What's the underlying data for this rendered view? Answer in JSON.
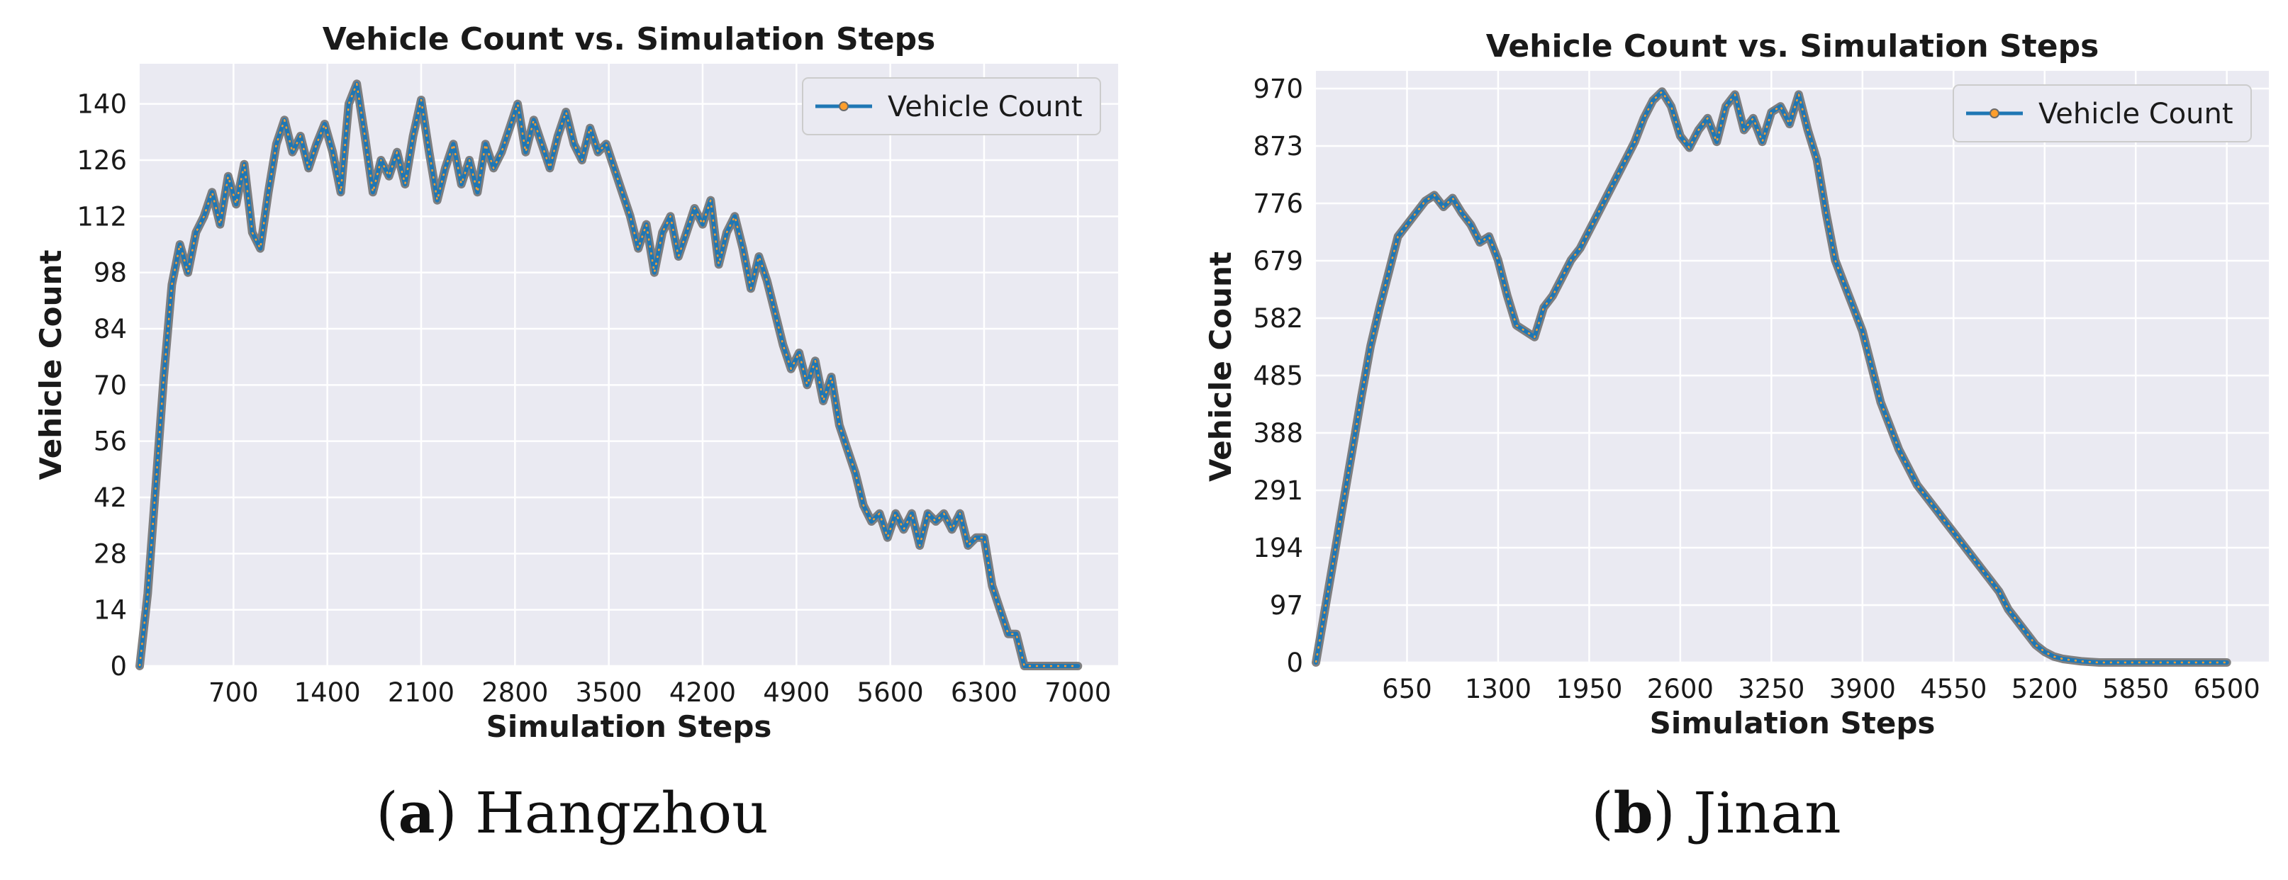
{
  "chart_data": [
    {
      "type": "line",
      "title": "Vehicle Count vs. Simulation Steps",
      "xlabel": "Simulation Steps",
      "ylabel": "Vehicle Count",
      "xlim": [
        0,
        7300
      ],
      "ylim": [
        0,
        150
      ],
      "xticks": [
        700,
        1400,
        2100,
        2800,
        3500,
        4200,
        4900,
        5600,
        6300,
        7000
      ],
      "yticks": [
        0,
        14,
        28,
        42,
        56,
        70,
        84,
        98,
        112,
        126,
        140
      ],
      "grid": true,
      "legend": "top-right",
      "series": [
        {
          "name": "Vehicle Count",
          "x": [
            0,
            60,
            120,
            180,
            240,
            300,
            360,
            420,
            480,
            540,
            600,
            660,
            720,
            780,
            840,
            900,
            960,
            1020,
            1080,
            1140,
            1200,
            1260,
            1320,
            1380,
            1440,
            1500,
            1560,
            1620,
            1680,
            1740,
            1800,
            1860,
            1920,
            1980,
            2040,
            2100,
            2160,
            2220,
            2280,
            2340,
            2400,
            2460,
            2520,
            2580,
            2640,
            2700,
            2760,
            2820,
            2880,
            2940,
            3000,
            3060,
            3120,
            3180,
            3240,
            3300,
            3360,
            3420,
            3480,
            3540,
            3600,
            3660,
            3720,
            3780,
            3840,
            3900,
            3960,
            4020,
            4080,
            4140,
            4200,
            4260,
            4320,
            4380,
            4440,
            4500,
            4560,
            4620,
            4680,
            4740,
            4800,
            4860,
            4920,
            4980,
            5040,
            5100,
            5160,
            5220,
            5280,
            5340,
            5400,
            5460,
            5520,
            5580,
            5640,
            5700,
            5760,
            5820,
            5880,
            5940,
            6000,
            6060,
            6120,
            6180,
            6240,
            6300,
            6360,
            6420,
            6480,
            6540,
            6600,
            6660,
            6720,
            6780,
            6840,
            6900,
            6960,
            7000
          ],
          "values": [
            0,
            18,
            45,
            72,
            95,
            105,
            98,
            108,
            112,
            118,
            110,
            122,
            115,
            125,
            108,
            104,
            118,
            130,
            136,
            128,
            132,
            124,
            130,
            135,
            128,
            118,
            140,
            145,
            132,
            118,
            126,
            122,
            128,
            120,
            132,
            141,
            128,
            116,
            124,
            130,
            120,
            126,
            118,
            130,
            124,
            128,
            134,
            140,
            128,
            136,
            130,
            124,
            132,
            138,
            130,
            126,
            134,
            128,
            130,
            124,
            118,
            112,
            104,
            110,
            98,
            108,
            112,
            102,
            108,
            114,
            110,
            116,
            100,
            108,
            112,
            104,
            94,
            102,
            96,
            88,
            80,
            74,
            78,
            70,
            76,
            66,
            72,
            60,
            54,
            48,
            40,
            36,
            38,
            32,
            38,
            34,
            38,
            30,
            38,
            36,
            38,
            34,
            38,
            30,
            32,
            32,
            20,
            14,
            8,
            8,
            0,
            0,
            0,
            0,
            0,
            0,
            0,
            0
          ]
        }
      ]
    },
    {
      "type": "line",
      "title": "Vehicle Count vs. Simulation Steps",
      "xlabel": "Simulation Steps",
      "ylabel": "Vehicle Count",
      "xlim": [
        0,
        6800
      ],
      "ylim": [
        0,
        1000
      ],
      "xticks": [
        650,
        1300,
        1950,
        2600,
        3250,
        3900,
        4550,
        5200,
        5850,
        6500
      ],
      "yticks": [
        0,
        97,
        194,
        291,
        388,
        485,
        582,
        679,
        776,
        873,
        970
      ],
      "grid": true,
      "legend": "top-right",
      "series": [
        {
          "name": "Vehicle Count",
          "x": [
            0,
            65,
            130,
            195,
            260,
            325,
            390,
            455,
            520,
            585,
            650,
            715,
            780,
            845,
            910,
            975,
            1040,
            1105,
            1170,
            1235,
            1300,
            1365,
            1430,
            1495,
            1560,
            1625,
            1690,
            1755,
            1820,
            1885,
            1950,
            2015,
            2080,
            2145,
            2210,
            2275,
            2340,
            2405,
            2470,
            2535,
            2600,
            2665,
            2730,
            2795,
            2860,
            2925,
            2990,
            3055,
            3120,
            3185,
            3250,
            3315,
            3380,
            3445,
            3510,
            3575,
            3640,
            3705,
            3770,
            3835,
            3900,
            3965,
            4030,
            4095,
            4160,
            4225,
            4290,
            4355,
            4420,
            4485,
            4550,
            4615,
            4680,
            4745,
            4810,
            4875,
            4940,
            5005,
            5070,
            5135,
            5200,
            5265,
            5330,
            5395,
            5460,
            5525,
            5590,
            5655,
            5720,
            5785,
            5850,
            5915,
            5980,
            6045,
            6110,
            6175,
            6240,
            6305,
            6370,
            6435,
            6500
          ],
          "values": [
            0,
            90,
            180,
            270,
            360,
            450,
            535,
            600,
            660,
            720,
            740,
            760,
            780,
            790,
            770,
            785,
            760,
            740,
            710,
            720,
            680,
            620,
            570,
            560,
            550,
            600,
            620,
            650,
            680,
            700,
            730,
            760,
            790,
            820,
            850,
            880,
            920,
            950,
            965,
            940,
            890,
            870,
            900,
            920,
            880,
            940,
            960,
            900,
            920,
            880,
            930,
            940,
            910,
            960,
            900,
            850,
            760,
            680,
            640,
            600,
            560,
            500,
            440,
            400,
            360,
            330,
            300,
            280,
            260,
            240,
            220,
            200,
            180,
            160,
            140,
            120,
            90,
            70,
            50,
            30,
            18,
            10,
            6,
            4,
            2,
            1,
            0,
            0,
            0,
            0,
            0,
            0,
            0,
            0,
            0,
            0,
            0,
            0,
            0,
            0,
            0
          ]
        }
      ]
    }
  ],
  "captions": [
    {
      "letter": "a",
      "open": "(",
      "close": ")",
      "city": " Hangzhou"
    },
    {
      "letter": "b",
      "open": "(",
      "close": ")",
      "city": " Jinan"
    }
  ],
  "colors": {
    "plot_bg": "#eaeaf2",
    "grid": "#ffffff",
    "line": "#1f77b4",
    "marker_edge": "#6b6b6b",
    "marker_face": "#ff9e2c",
    "text": "#1a1a1a"
  }
}
